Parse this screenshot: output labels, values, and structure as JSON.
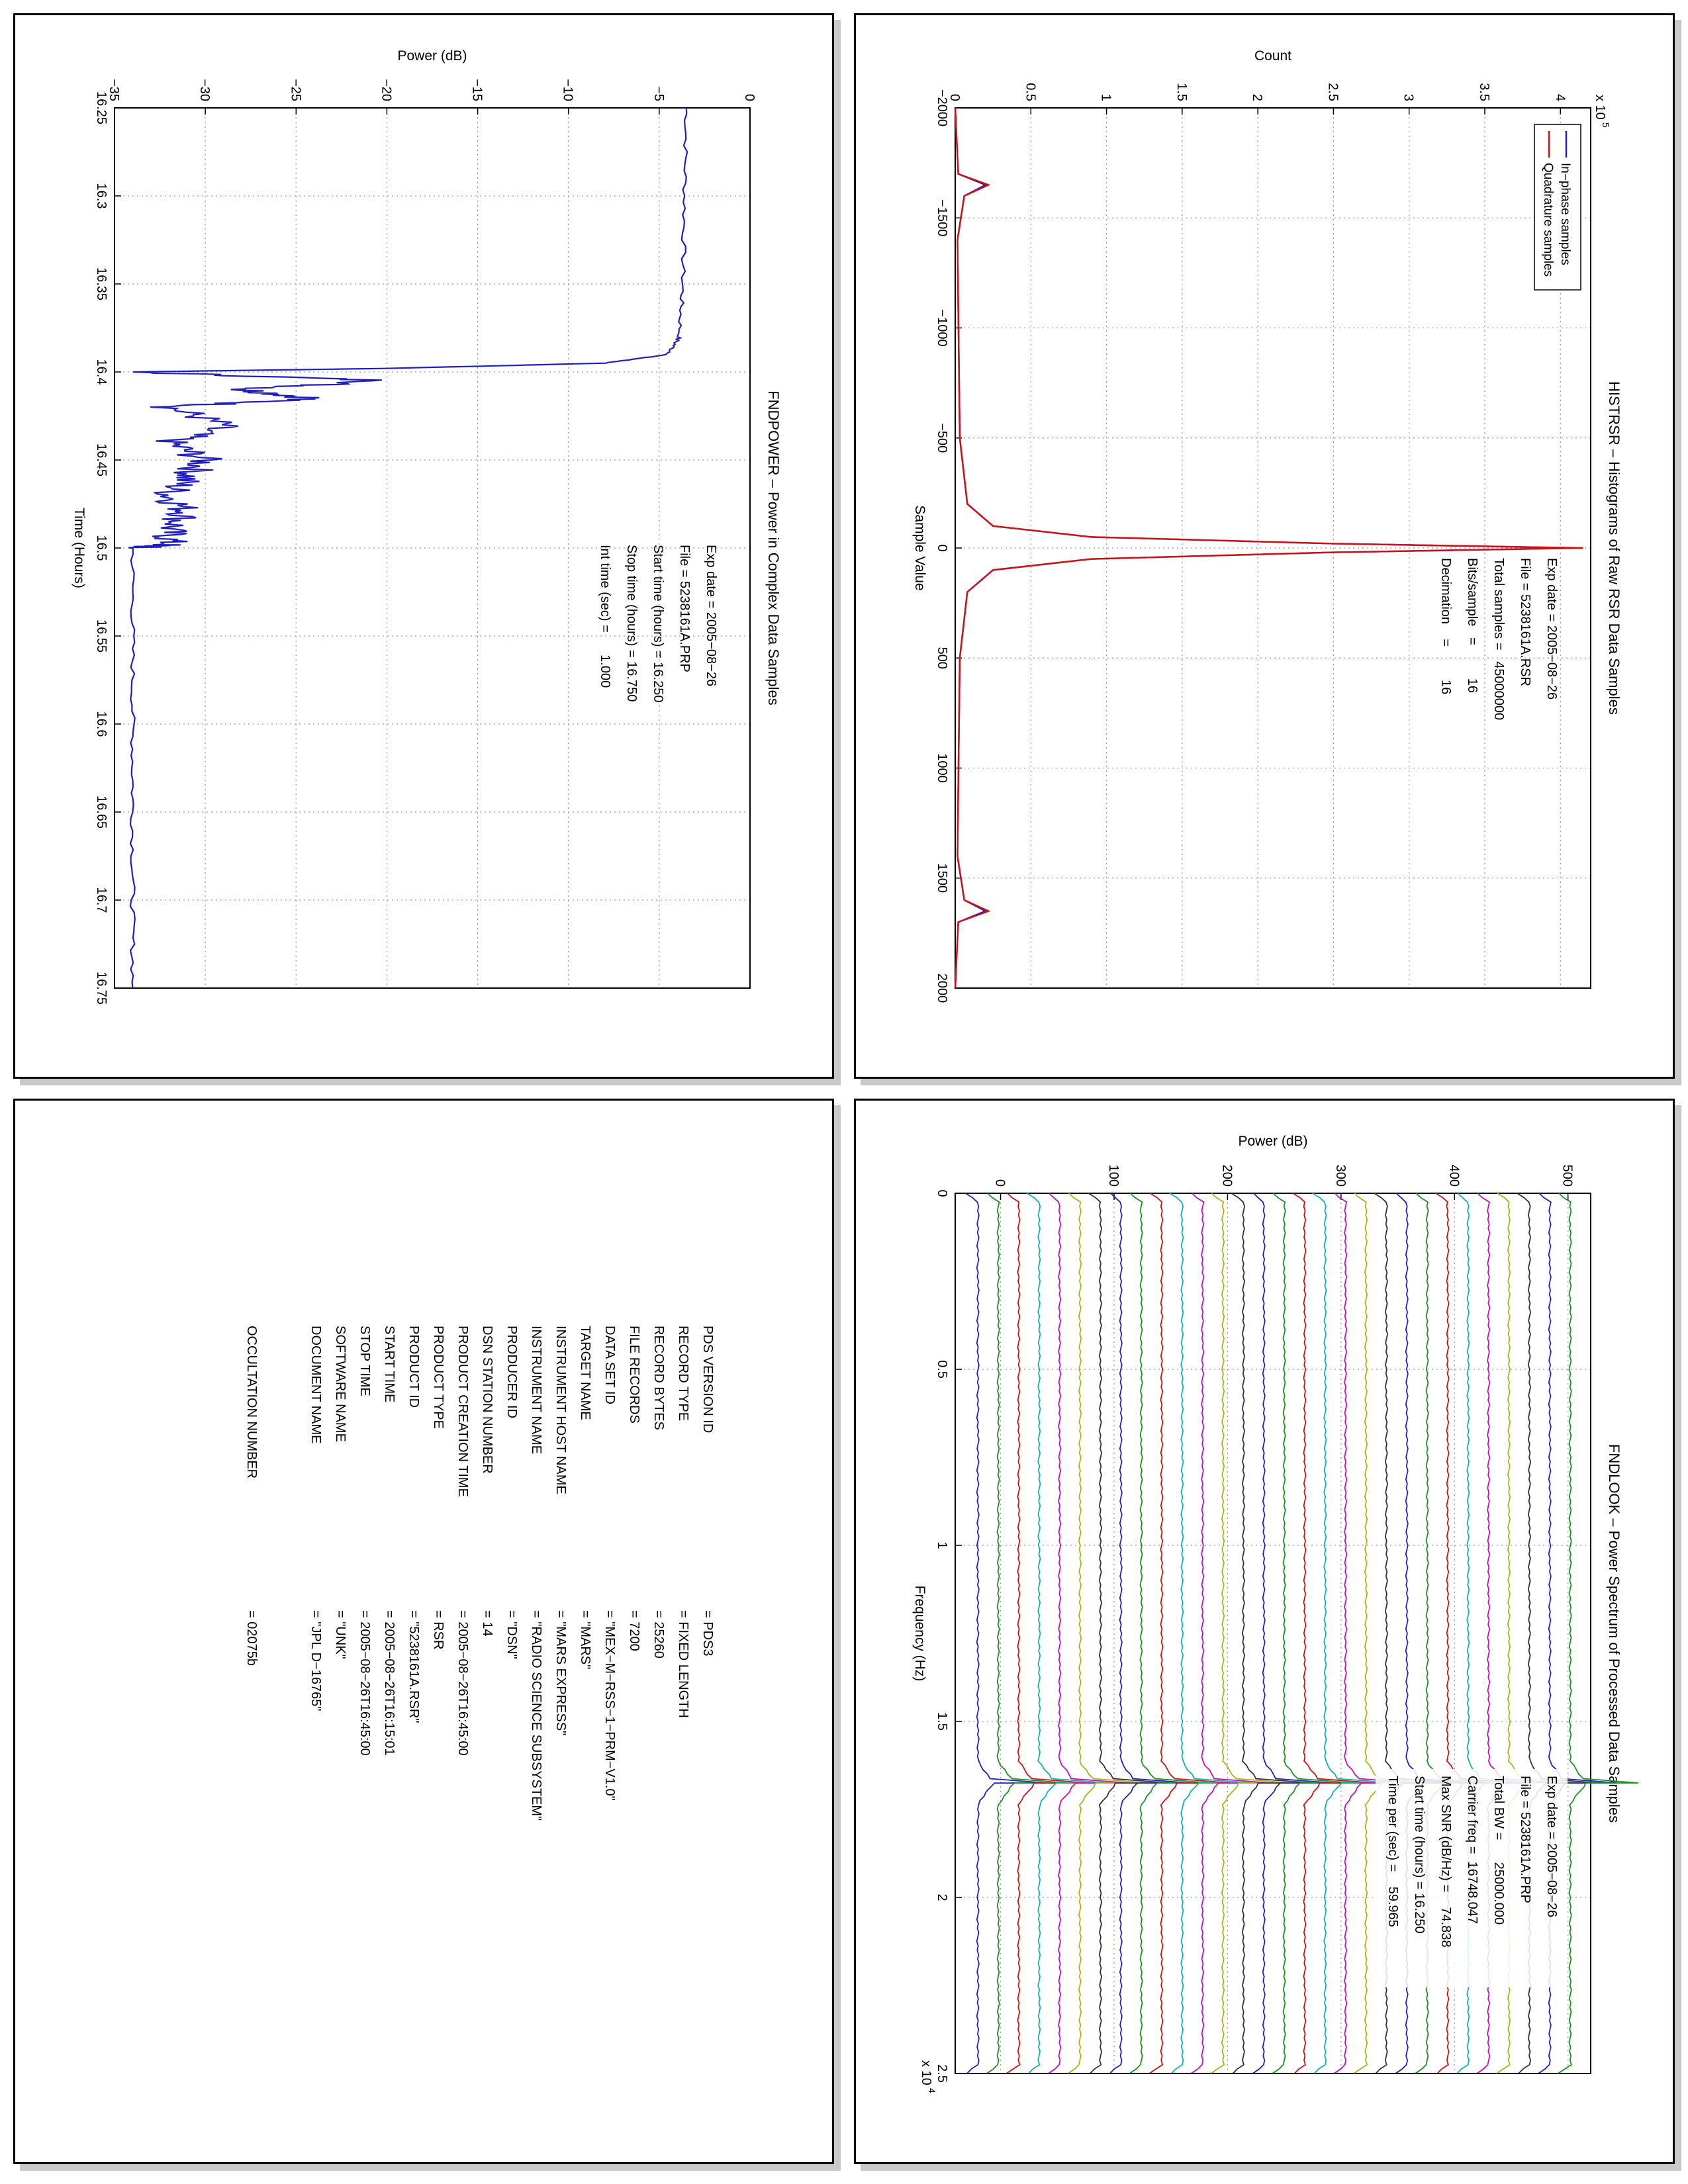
{
  "colors": {
    "inphase": "#1f1fbf",
    "quadrature": "#d01010",
    "power": "#1f1fbf",
    "grid": "#9a9a9a",
    "axis": "#000000"
  },
  "charts": {
    "histogram": {
      "title": "HISTRSR – Histograms of Raw RSR Data Samples",
      "xlabel": "Sample Value",
      "ylabel": "Count",
      "exponent_label": "x 10",
      "exponent_power": "5",
      "xticks": [
        "−2000",
        "−1500",
        "−1000",
        "−500",
        "0",
        "500",
        "1000",
        "1500",
        "2000"
      ],
      "yticks": [
        "0",
        "0.5",
        "1",
        "1.5",
        "2",
        "2.5",
        "3",
        "3.5",
        "4"
      ],
      "legend": [
        "In−phase samples",
        "Quadrature samples"
      ],
      "info": [
        "Exp date = 2005−08−26",
        "File = 5238161A.RSR",
        "Total samples =   45000000",
        "Bits/sample   =         16",
        "Decimation    =         16"
      ]
    },
    "power": {
      "title": "FNDPOWER – Power in Complex Data Samples",
      "xlabel": "Time (Hours)",
      "ylabel": "Power (dB)",
      "xticks": [
        "16.25",
        "16.3",
        "16.35",
        "16.4",
        "16.45",
        "16.5",
        "16.55",
        "16.6",
        "16.65",
        "16.7",
        "16.75"
      ],
      "yticks": [
        "−35",
        "−30",
        "−25",
        "−20",
        "−15",
        "−10",
        "−5",
        "0"
      ],
      "info": [
        "Exp date = 2005−08−26",
        "File = 5238161A.PRP",
        "Start time (hours) = 16.250",
        "Stop time (hours) = 16.750",
        "Int time (sec) =      1.000"
      ]
    },
    "spectrum": {
      "title": "FNDLOOK – Power Spectrum of Processed Data Samples",
      "xlabel": "Frequency (Hz)",
      "ylabel": "Power (dB)",
      "exponent_label": "x 10",
      "exponent_power": "4",
      "xticks": [
        "0",
        "0.5",
        "1",
        "1.5",
        "2",
        "2.5"
      ],
      "yticks": [
        "0",
        "100",
        "200",
        "300",
        "400",
        "500"
      ],
      "info": [
        "Exp date = 2005−08−26",
        "File = 5238161A.PRP",
        "Total BW =      25000.000",
        "Carrier freq =  16748.047",
        "Max SNR (dB/Hz) =    74.838",
        "Start time (hours) = 16.250",
        "Time per (sec) =    59.965"
      ]
    }
  },
  "label_table": {
    "rows": [
      [
        "PDS VERSION ID",
        "= PDS3"
      ],
      [
        "RECORD TYPE",
        "= FIXED LENGTH"
      ],
      [
        "RECORD BYTES",
        "= 25260"
      ],
      [
        "FILE RECORDS",
        "= 7200"
      ],
      [
        "DATA SET ID",
        "= \"MEX−M−RSS−1−PRM−V1.0\""
      ],
      [
        "TARGET NAME",
        "= \"MARS\""
      ],
      [
        "INSTRUMENT HOST NAME",
        "= \"MARS EXPRESS\""
      ],
      [
        "INSTRUMENT NAME",
        "= \"RADIO SCIENCE SUBSYSTEM\""
      ],
      [
        "PRODUCER ID",
        "= \"DSN\""
      ],
      [
        "DSN STATION NUMBER",
        "= 14"
      ],
      [
        "PRODUCT CREATION TIME",
        "= 2005−08−26T16:45:00"
      ],
      [
        "PRODUCT TYPE",
        "= RSR"
      ],
      [
        "PRODUCT ID",
        "= \"5238161A.RSR\""
      ],
      [
        "START TIME",
        "= 2005−08−26T16:15:01"
      ],
      [
        "STOP TIME",
        "= 2005−08−26T16:45:00"
      ],
      [
        "SOFTWARE NAME",
        "= \"UNK\""
      ],
      [
        "DOCUMENT NAME",
        "= \"JPL D−16765\""
      ]
    ],
    "occultation_label": "OCCULTATION NUMBER",
    "occultation_value": "= 02075b"
  },
  "chart_data": [
    {
      "type": "line",
      "title": "HISTRSR – Histograms of Raw RSR Data Samples",
      "xlabel": "Sample Value",
      "ylabel": "Count",
      "xlim": [
        -2000,
        2000
      ],
      "ylim": [
        0,
        420000
      ],
      "grid": true,
      "legend_position": "top-right",
      "series": [
        {
          "name": "In−phase samples",
          "x": [
            -2000,
            -1700,
            -1650,
            -1600,
            -1400,
            -500,
            -200,
            -100,
            -50,
            -20,
            0,
            20,
            50,
            100,
            200,
            500,
            1400,
            1600,
            1650,
            1700,
            2000
          ],
          "y": [
            0,
            2000,
            20000,
            6000,
            1500,
            3000,
            8000,
            25000,
            90000,
            250000,
            410000,
            250000,
            90000,
            25000,
            8000,
            3000,
            1500,
            6000,
            20000,
            2000,
            0
          ]
        },
        {
          "name": "Quadrature samples",
          "x": [
            -2000,
            -1700,
            -1650,
            -1600,
            -1400,
            -500,
            -200,
            -100,
            -50,
            -20,
            0,
            20,
            50,
            100,
            200,
            500,
            1400,
            1600,
            1650,
            1700,
            2000
          ],
          "y": [
            0,
            2000,
            22000,
            6000,
            1500,
            3000,
            8000,
            25000,
            90000,
            250000,
            415000,
            250000,
            90000,
            25000,
            8000,
            3000,
            1500,
            6000,
            22000,
            2000,
            0
          ]
        }
      ]
    },
    {
      "type": "line",
      "title": "FNDPOWER – Power in Complex Data Samples",
      "xlabel": "Time (Hours)",
      "ylabel": "Power (dB)",
      "xlim": [
        16.25,
        16.75
      ],
      "ylim": [
        -35,
        0
      ],
      "grid": true,
      "series": [
        {
          "x": [
            16.25,
            16.3,
            16.35,
            16.38,
            16.39,
            16.395,
            16.398,
            16.4,
            16.405,
            16.41,
            16.415,
            16.42,
            16.43,
            16.44,
            16.45,
            16.46,
            16.47,
            16.48,
            16.49,
            16.498,
            16.5,
            16.55,
            16.6,
            16.65,
            16.7,
            16.75
          ],
          "y": [
            -3.5,
            -3.6,
            -3.7,
            -3.9,
            -4.5,
            -8,
            -20,
            -34,
            -20,
            -28,
            -24,
            -32,
            -29,
            -32,
            -30,
            -31,
            -32,
            -31,
            -32,
            -32,
            -34,
            -34,
            -34,
            -34,
            -34,
            -34
          ]
        }
      ]
    },
    {
      "type": "line",
      "title": "FNDLOOK – Power Spectrum of Processed Data Samples",
      "xlabel": "Frequency (Hz)",
      "ylabel": "Power (dB)",
      "xlim": [
        0,
        25000
      ],
      "ylim": [
        -40,
        520
      ],
      "grid": true,
      "peak_frequency": 16748,
      "series_count": 30,
      "offset_step": 18
    }
  ]
}
